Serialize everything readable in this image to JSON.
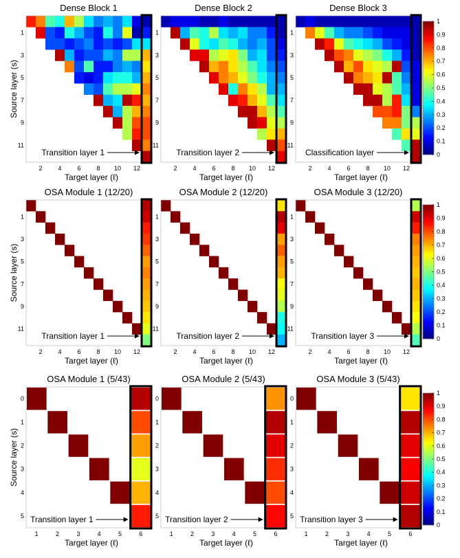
{
  "colors": {
    "background": "#ffffff",
    "highlight_box": "#000000",
    "colormap": "jet"
  },
  "colorbar": {
    "ticks": [
      "0",
      "0.1",
      "0.2",
      "0.3",
      "0.4",
      "0.5",
      "0.6",
      "0.7",
      "0.8",
      "0.9",
      "1"
    ]
  },
  "chart_data": [
    {
      "type": "heatmap",
      "title": "Dense Block 1",
      "ylabel": "Source layer (s)",
      "xlabel": "Target layer (ℓ)",
      "annotation": "Transition layer 1",
      "xticks": [
        "2",
        "4",
        "6",
        "8",
        "10",
        "12"
      ],
      "yticks": [
        "1",
        "3",
        "5",
        "7",
        "9",
        "11"
      ],
      "ncols": 13,
      "nrows": 13,
      "lower_triangle_only": true,
      "highlight_column": 12,
      "values": [
        [
          0.85,
          0.75,
          0.45,
          0.4,
          0.7,
          0.55,
          0.35,
          0.25,
          0.3,
          0.25,
          0.35,
          0.1,
          0.05
        ],
        [
          null,
          0.9,
          0.2,
          0.15,
          0.4,
          0.3,
          0.2,
          0.15,
          0.4,
          0.25,
          0.6,
          0.05,
          0.15
        ],
        [
          null,
          null,
          0.2,
          0.2,
          0.15,
          0.2,
          0.25,
          0.15,
          0.2,
          0.15,
          0.2,
          0.35,
          0.35
        ],
        [
          null,
          null,
          null,
          0.95,
          0.3,
          0.15,
          0.2,
          0.2,
          0.3,
          0.25,
          0.55,
          0.55,
          0.7
        ],
        [
          null,
          null,
          null,
          null,
          0.75,
          0.2,
          0.45,
          0.15,
          0.15,
          0.25,
          0.3,
          0.25,
          0.65
        ],
        [
          null,
          null,
          null,
          null,
          null,
          0.15,
          0.1,
          0.15,
          0.35,
          0.4,
          0.4,
          0.3,
          0.7
        ],
        [
          null,
          null,
          null,
          null,
          null,
          null,
          0.25,
          0.2,
          0.45,
          0.55,
          0.55,
          0.6,
          0.75
        ],
        [
          null,
          null,
          null,
          null,
          null,
          null,
          null,
          0.95,
          0.3,
          0.35,
          0.95,
          0.85,
          0.7
        ],
        [
          null,
          null,
          null,
          null,
          null,
          null,
          null,
          null,
          0.95,
          0.3,
          0.55,
          0.7,
          0.75
        ],
        [
          null,
          null,
          null,
          null,
          null,
          null,
          null,
          null,
          null,
          0.95,
          0.55,
          0.8,
          0.8
        ],
        [
          null,
          null,
          null,
          null,
          null,
          null,
          null,
          null,
          null,
          null,
          0.55,
          0.85,
          0.8
        ],
        [
          null,
          null,
          null,
          null,
          null,
          null,
          null,
          null,
          null,
          null,
          null,
          0.95,
          0.75
        ],
        [
          null,
          null,
          null,
          null,
          null,
          null,
          null,
          null,
          null,
          null,
          null,
          null,
          0.95
        ]
      ]
    },
    {
      "type": "heatmap",
      "title": "Dense Block 2",
      "ylabel": "Source layer (s)",
      "xlabel": "Target layer (ℓ)",
      "annotation": "Transition layer 2",
      "xticks": [
        "2",
        "4",
        "6",
        "8",
        "10",
        "12"
      ],
      "yticks": [
        "1",
        "3",
        "5",
        "7",
        "9",
        "11"
      ],
      "ncols": 13,
      "nrows": 13,
      "lower_triangle_only": true,
      "highlight_column": 12,
      "values": [
        [
          0.05,
          0.1,
          0.1,
          0.1,
          0.05,
          0.05,
          0.1,
          0.05,
          0.05,
          0.05,
          0.05,
          0.05,
          0.05
        ],
        [
          null,
          0.95,
          0.3,
          0.45,
          0.4,
          0.55,
          0.35,
          0.3,
          0.35,
          0.25,
          0.25,
          0.15,
          0.05
        ],
        [
          null,
          null,
          0.95,
          0.6,
          0.4,
          0.35,
          0.45,
          0.4,
          0.3,
          0.25,
          0.3,
          0.2,
          0.1
        ],
        [
          null,
          null,
          null,
          0.9,
          0.9,
          0.55,
          0.6,
          0.65,
          0.5,
          0.3,
          0.35,
          0.2,
          0.15
        ],
        [
          null,
          null,
          null,
          null,
          0.95,
          0.7,
          0.75,
          0.65,
          0.55,
          0.45,
          0.35,
          0.25,
          0.2
        ],
        [
          null,
          null,
          null,
          null,
          null,
          0.9,
          0.75,
          0.7,
          0.6,
          0.5,
          0.4,
          0.3,
          0.25
        ],
        [
          null,
          null,
          null,
          null,
          null,
          null,
          0.9,
          0.4,
          0.75,
          0.65,
          0.55,
          0.3,
          0.3
        ],
        [
          null,
          null,
          null,
          null,
          null,
          null,
          null,
          0.9,
          0.85,
          0.7,
          0.6,
          0.45,
          0.35
        ],
        [
          null,
          null,
          null,
          null,
          null,
          null,
          null,
          null,
          0.95,
          0.95,
          0.7,
          0.55,
          0.45
        ],
        [
          null,
          null,
          null,
          null,
          null,
          null,
          null,
          null,
          null,
          0.95,
          0.9,
          0.6,
          0.55
        ],
        [
          null,
          null,
          null,
          null,
          null,
          null,
          null,
          null,
          null,
          null,
          0.55,
          0.65,
          0.7
        ],
        [
          null,
          null,
          null,
          null,
          null,
          null,
          null,
          null,
          null,
          null,
          null,
          0.95,
          0.8
        ],
        [
          null,
          null,
          null,
          null,
          null,
          null,
          null,
          null,
          null,
          null,
          null,
          null,
          0.9
        ]
      ]
    },
    {
      "type": "heatmap",
      "title": "Dense Block 3",
      "ylabel": "Source layer (s)",
      "xlabel": "Target layer (ℓ)",
      "annotation": "Classification layer",
      "xticks": [
        "2",
        "4",
        "6",
        "8",
        "10",
        "12"
      ],
      "yticks": [
        "1",
        "3",
        "5",
        "7",
        "9",
        "11"
      ],
      "ncols": 13,
      "nrows": 13,
      "lower_triangle_only": true,
      "highlight_column": 12,
      "values": [
        [
          0.05,
          0.1,
          0.05,
          0.05,
          0.05,
          0.05,
          0.05,
          0.05,
          0.05,
          0.05,
          0.05,
          0.05,
          0.05
        ],
        [
          null,
          0.75,
          0.6,
          0.45,
          0.3,
          0.25,
          0.25,
          0.2,
          0.15,
          0.1,
          0.1,
          0.1,
          0.05
        ],
        [
          null,
          null,
          0.95,
          0.85,
          0.6,
          0.45,
          0.4,
          0.35,
          0.3,
          0.2,
          0.15,
          0.1,
          0.05
        ],
        [
          null,
          null,
          null,
          0.95,
          0.8,
          0.75,
          0.6,
          0.55,
          0.5,
          0.4,
          0.3,
          0.15,
          0.05
        ],
        [
          null,
          null,
          null,
          null,
          0.95,
          0.7,
          0.8,
          0.65,
          0.6,
          0.55,
          0.95,
          0.2,
          0.1
        ],
        [
          null,
          null,
          null,
          null,
          null,
          0.95,
          0.75,
          0.7,
          0.65,
          0.95,
          0.45,
          0.25,
          0.1
        ],
        [
          null,
          null,
          null,
          null,
          null,
          null,
          0.95,
          0.95,
          0.6,
          0.55,
          0.45,
          0.3,
          0.1
        ],
        [
          null,
          null,
          null,
          null,
          null,
          null,
          null,
          0.95,
          0.95,
          0.55,
          0.85,
          0.35,
          0.1
        ],
        [
          null,
          null,
          null,
          null,
          null,
          null,
          null,
          null,
          0.8,
          0.8,
          0.85,
          0.5,
          0.25
        ],
        [
          null,
          null,
          null,
          null,
          null,
          null,
          null,
          null,
          null,
          0.75,
          0.75,
          0.5,
          0.55
        ],
        [
          null,
          null,
          null,
          null,
          null,
          null,
          null,
          null,
          null,
          null,
          0.45,
          0.65,
          0.6
        ],
        [
          null,
          null,
          null,
          null,
          null,
          null,
          null,
          null,
          null,
          null,
          null,
          0.45,
          0.95
        ],
        [
          null,
          null,
          null,
          null,
          null,
          null,
          null,
          null,
          null,
          null,
          null,
          null,
          0.95
        ]
      ]
    },
    {
      "type": "heatmap",
      "title": "OSA Module 1 (12/20)",
      "ylabel": "Source layer (s)",
      "xlabel": "Target layer (ℓ)",
      "annotation": "Transition layer 1",
      "xticks": [
        "2",
        "4",
        "6",
        "8",
        "10",
        "12"
      ],
      "yticks": [
        "1",
        "3",
        "5",
        "7",
        "9",
        "11"
      ],
      "ncols": 13,
      "nrows": 13,
      "diagonal_value": 1.0,
      "highlight_column": 12,
      "last_column": [
        0.95,
        0.92,
        0.85,
        0.82,
        0.78,
        0.72,
        0.75,
        0.72,
        0.7,
        0.68,
        0.65,
        0.6,
        0.5
      ]
    },
    {
      "type": "heatmap",
      "title": "OSA Module 2 (12/20)",
      "ylabel": "Source layer (s)",
      "xlabel": "Target layer (ℓ)",
      "annotation": "Transition layer 2",
      "xticks": [
        "2",
        "4",
        "6",
        "8",
        "10",
        "12"
      ],
      "yticks": [
        "1",
        "3",
        "5",
        "7",
        "9",
        "11"
      ],
      "ncols": 13,
      "nrows": 13,
      "diagonal_value": 1.0,
      "highlight_column": 12,
      "last_column": [
        0.65,
        0.95,
        0.9,
        0.72,
        0.78,
        0.72,
        0.7,
        0.62,
        0.6,
        0.55,
        0.4,
        0.38,
        0.3
      ]
    },
    {
      "type": "heatmap",
      "title": "OSA Module 3 (12/20)",
      "ylabel": "Source layer (s)",
      "xlabel": "Target layer (ℓ)",
      "annotation": "Transition layer 3",
      "xticks": [
        "2",
        "4",
        "6",
        "8",
        "10",
        "12"
      ],
      "yticks": [
        "1",
        "3",
        "5",
        "7",
        "9",
        "11"
      ],
      "ncols": 13,
      "nrows": 13,
      "diagonal_value": 1.0,
      "highlight_column": 12,
      "last_column": [
        0.55,
        0.92,
        0.85,
        0.75,
        0.72,
        0.7,
        0.68,
        0.7,
        0.68,
        0.65,
        0.62,
        0.55,
        0.45
      ]
    },
    {
      "type": "heatmap",
      "title": "OSA Module 1 (5/43)",
      "ylabel": "Source layer (s)",
      "xlabel": "Target layer (ℓ)",
      "annotation": "Transition layer 1",
      "xticks": [
        "1",
        "2",
        "3",
        "4",
        "5",
        "6"
      ],
      "yticks": [
        "0",
        "1",
        "2",
        "3",
        "4",
        "5"
      ],
      "ncols": 6,
      "nrows": 6,
      "diagonal_value": 1.0,
      "highlight_column": 5,
      "last_column": [
        0.95,
        0.8,
        0.72,
        0.6,
        0.7,
        0.85
      ]
    },
    {
      "type": "heatmap",
      "title": "OSA Module 2 (5/43)",
      "ylabel": "Source layer (s)",
      "xlabel": "Target layer (ℓ)",
      "annotation": "Transition layer 2",
      "xticks": [
        "1",
        "2",
        "3",
        "4",
        "5",
        "6"
      ],
      "yticks": [
        "0",
        "1",
        "2",
        "3",
        "4",
        "5"
      ],
      "ncols": 6,
      "nrows": 6,
      "diagonal_value": 1.0,
      "highlight_column": 5,
      "last_column": [
        0.73,
        0.95,
        0.9,
        0.83,
        0.8,
        0.87
      ]
    },
    {
      "type": "heatmap",
      "title": "OSA Module 3 (5/43)",
      "ylabel": "Source layer (s)",
      "xlabel": "Target layer (ℓ)",
      "annotation": "Transition layer 3",
      "xticks": [
        "1",
        "2",
        "3",
        "4",
        "5",
        "6"
      ],
      "yticks": [
        "0",
        "1",
        "2",
        "3",
        "4",
        "5"
      ],
      "ncols": 6,
      "nrows": 6,
      "diagonal_value": 1.0,
      "highlight_column": 5,
      "last_column": [
        0.65,
        0.95,
        0.9,
        0.88,
        0.92,
        0.95
      ]
    }
  ]
}
